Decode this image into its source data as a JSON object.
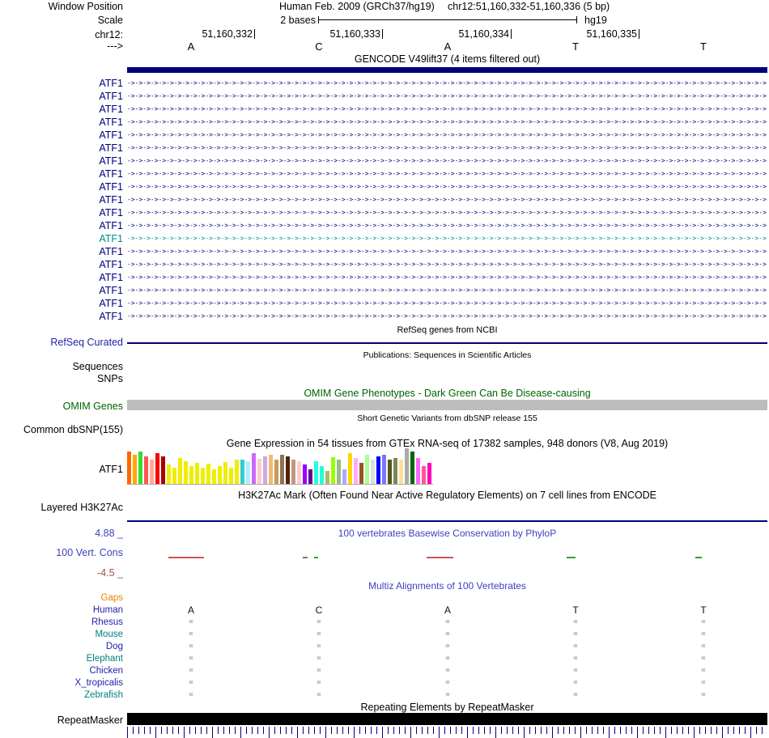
{
  "header": {
    "window_position_label": "Window Position",
    "assembly": "Human Feb. 2009 (GRCh37/hg19)",
    "position": "chr12:51,160,332-51,160,336 (5 bp)",
    "scale_label": "Scale",
    "scale_value": "2 bases",
    "scale_right": "hg19",
    "chrom_label": "chr12:",
    "coords": [
      "51,160,332",
      "51,160,333",
      "51,160,334",
      "51,160,335"
    ],
    "strand_label": "--->",
    "bases": [
      "A",
      "C",
      "A",
      "T",
      "T"
    ]
  },
  "gencode": {
    "title": "GENCODE V49lift37 (4 items filtered out)",
    "gene_label": "ATF1",
    "bar_color": "#000078",
    "row_colors": [
      "#000080",
      "#000080",
      "#000080",
      "#000080",
      "#000080",
      "#000080",
      "#000080",
      "#000080",
      "#000080",
      "#000080",
      "#000080",
      "#000080",
      "#008b8b",
      "#000080",
      "#000080",
      "#000080",
      "#000080",
      "#000080",
      "#000080"
    ]
  },
  "refseq": {
    "title": "RefSeq genes from NCBI",
    "label": "RefSeq Curated",
    "label_color": "#2222aa",
    "line_color": "#000066"
  },
  "publications": {
    "title": "Publications: Sequences in Scientific Articles",
    "sequences_label": "Sequences",
    "snps_label": "SNPs"
  },
  "omim": {
    "title": "OMIM Gene Phenotypes - Dark Green Can Be Disease-causing",
    "title_color": "#006400",
    "label": "OMIM Genes",
    "label_color": "#006400",
    "bar_color": "#bdbdbd"
  },
  "dbsnp": {
    "title": "Short Genetic Variants from dbSNP release 155",
    "label": "Common dbSNP(155)"
  },
  "gtex": {
    "title": "Gene Expression in 54 tissues from GTEx RNA-seq of 17382 samples, 948 donors (V8, Aug 2019)",
    "label": "ATF1",
    "bar_colors": [
      "#ff6600",
      "#ffaa00",
      "#33dd33",
      "#ff5555",
      "#ffaa99",
      "#ff0000",
      "#aa0000",
      "#eeee00",
      "#eeee00",
      "#eeee00",
      "#eeee00",
      "#eeee00",
      "#eeee00",
      "#eeee00",
      "#eeee00",
      "#eeee00",
      "#eeee00",
      "#eeee00",
      "#eeee00",
      "#eeee00",
      "#33cccc",
      "#aaeeff",
      "#cc66ff",
      "#ffcccc",
      "#ccaadd",
      "#eebb77",
      "#cc9955",
      "#8b7355",
      "#552200",
      "#bb9988",
      "#ffcccc",
      "#9900ff",
      "#660099",
      "#22ffdd",
      "#22ffdd",
      "#aabb66",
      "#99ff00",
      "#99bb88",
      "#aaaaff",
      "#ffd700",
      "#ffaaff",
      "#995522",
      "#aaff99",
      "#dddddd",
      "#0000ff",
      "#7777ff",
      "#555522",
      "#778855",
      "#ffdd99",
      "#aaaaaa",
      "#006600",
      "#ff66ff",
      "#ff5599",
      "#ff00bb"
    ],
    "bar_heights": [
      40,
      36,
      40,
      34,
      30,
      38,
      34,
      24,
      20,
      32,
      28,
      22,
      26,
      20,
      25,
      18,
      22,
      27,
      20,
      30,
      30,
      28,
      38,
      31,
      34,
      36,
      30,
      36,
      34,
      30,
      28,
      24,
      18,
      28,
      22,
      16,
      33,
      30,
      18,
      38,
      32,
      26,
      36,
      30,
      34,
      36,
      30,
      32,
      30,
      44,
      40,
      32,
      22,
      26
    ]
  },
  "encode": {
    "title": "H3K27Ac Mark (Often Found Near Active Regulatory Elements) on 7 cell lines from ENCODE",
    "label": "Layered H3K27Ac",
    "line_color": "#000080"
  },
  "phylop": {
    "max_label": "4.88 _",
    "min_label": "-4.5 _",
    "title": "100 vertebrates Basewise Conservation by PhyloP",
    "label": "100 Vert. Cons",
    "title_color": "#4040c0",
    "label_color": "#4040c0",
    "max_color": "#4040c0",
    "min_color": "#a05050",
    "ticks": [
      {
        "l": 51,
        "w": 44,
        "c": "#cc5555"
      },
      {
        "l": 217,
        "w": 6,
        "c": "#777777"
      },
      {
        "l": 231,
        "w": 5,
        "c": "#30a030"
      },
      {
        "l": 370,
        "w": 33,
        "c": "#cc5555"
      },
      {
        "l": 543,
        "w": 11,
        "c": "#30a030"
      },
      {
        "l": 702,
        "w": 8,
        "c": "#30a030"
      }
    ]
  },
  "multiz": {
    "title": "Multiz Alignments of 100 Vertebrates",
    "title_color": "#4040c0",
    "mark": "=",
    "mark_color": "#999999",
    "bases": [
      "A",
      "C",
      "A",
      "T",
      "T"
    ],
    "species": [
      {
        "label": "Gaps",
        "color": "#dd8800",
        "type": "none"
      },
      {
        "label": "Human",
        "color": "#2222aa",
        "type": "bases"
      },
      {
        "label": "Rhesus",
        "color": "#2222aa",
        "type": "marks"
      },
      {
        "label": "Mouse",
        "color": "#008080",
        "type": "marks"
      },
      {
        "label": "Dog",
        "color": "#2222aa",
        "type": "marks"
      },
      {
        "label": "Elephant",
        "color": "#008080",
        "type": "marks"
      },
      {
        "label": "Chicken",
        "color": "#2222aa",
        "type": "marks"
      },
      {
        "label": "X_tropicalis",
        "color": "#2222aa",
        "type": "marks"
      },
      {
        "label": "Zebrafish",
        "color": "#008080",
        "type": "marks"
      }
    ]
  },
  "repeat": {
    "title": "Repeating Elements by RepeatMasker",
    "label": "RepeatMasker",
    "bar_color": "#000000"
  },
  "ruler": {
    "color": "#000080"
  }
}
